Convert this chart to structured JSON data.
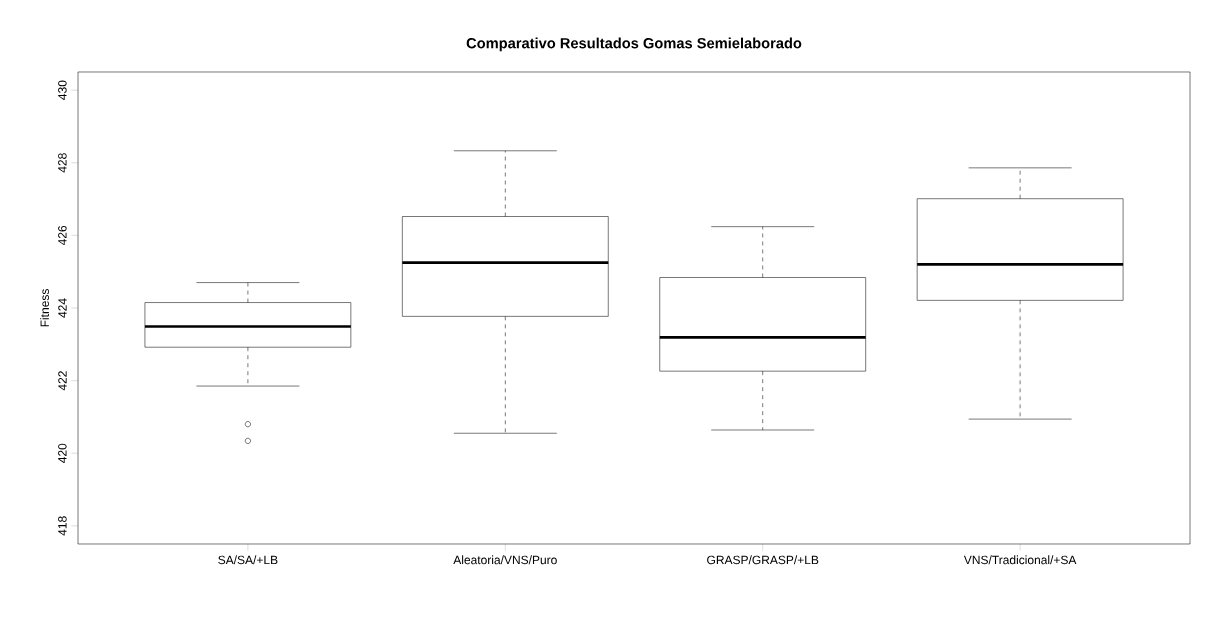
{
  "chart_data": {
    "type": "box",
    "title": "Comparativo Resultados Gomas Semielaborado",
    "ylabel": "Fitness",
    "categories": [
      "SA/SA/+LB",
      "Aleatoria/VNS/Puro",
      "GRASP/GRASP/+LB",
      "VNS/Tradicional/+SA"
    ],
    "boxes": [
      {
        "low": 421.85,
        "q1": 422.92,
        "median": 423.49,
        "q3": 424.15,
        "high": 424.7,
        "outliers": [
          420.8,
          420.34
        ]
      },
      {
        "low": 420.55,
        "q1": 423.77,
        "median": 425.25,
        "q3": 426.52,
        "high": 428.33
      },
      {
        "low": 420.64,
        "q1": 422.26,
        "median": 423.19,
        "q3": 424.84,
        "high": 426.24
      },
      {
        "low": 420.94,
        "q1": 424.21,
        "median": 425.2,
        "q3": 427.01,
        "high": 427.86
      }
    ],
    "ylim": [
      417.5,
      430.5
    ],
    "yticks": [
      418,
      420,
      422,
      424,
      426,
      428,
      430
    ]
  }
}
